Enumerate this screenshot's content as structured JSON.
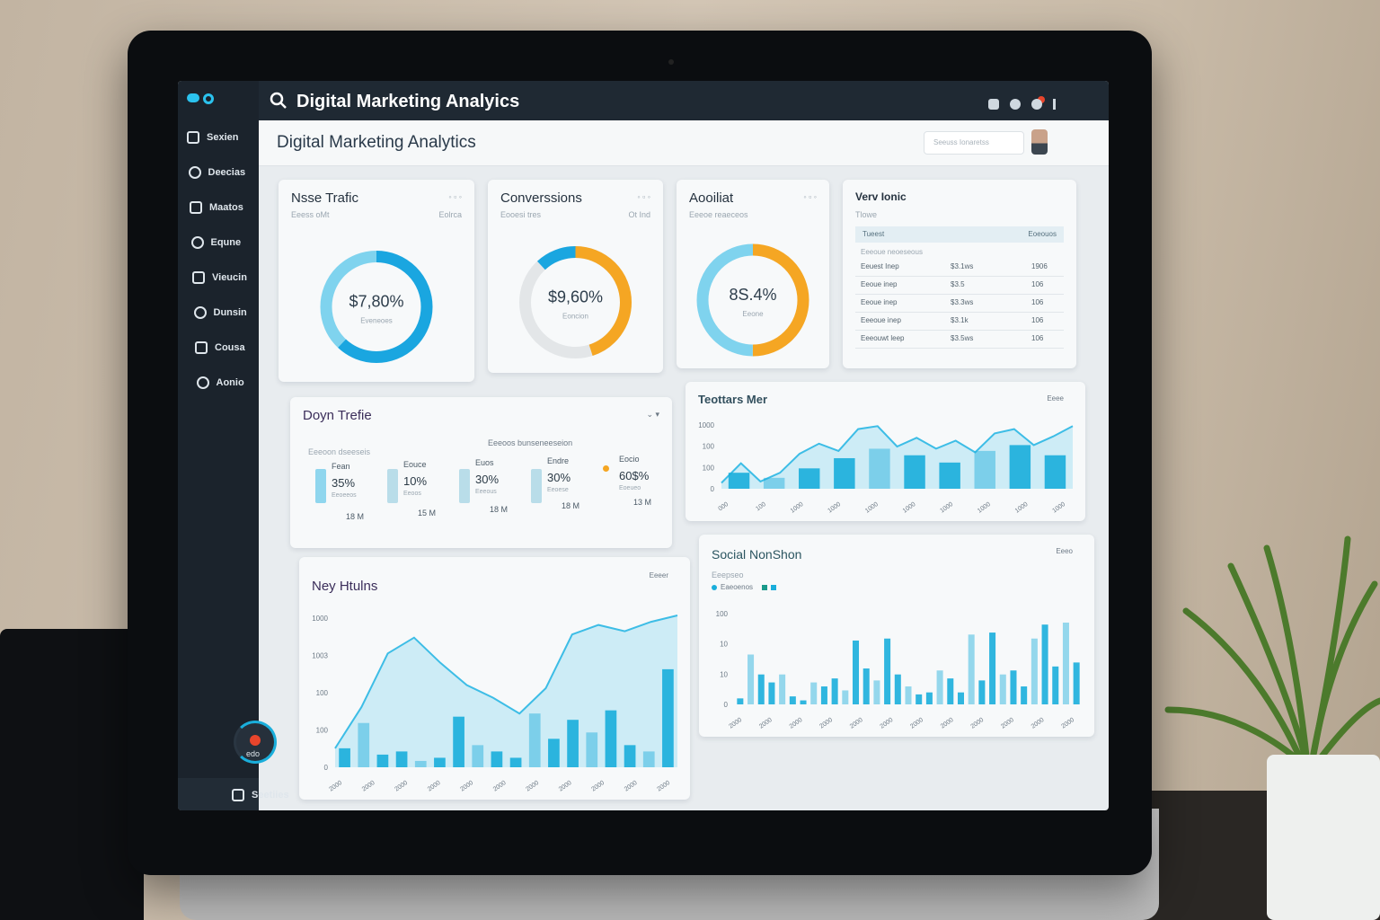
{
  "sidebar": {
    "items": [
      "Sexien",
      "Deecias",
      "Maatos",
      "Equne",
      "Vieucin",
      "Dunsin",
      "Cousa",
      "Aonio"
    ],
    "badge": "edo",
    "footer": "Seetiies"
  },
  "topbar": {
    "title": "Digital Marketing Analyics"
  },
  "header": {
    "title": "Digital Marketing Analytics",
    "search": "Seeuss Ionaretss"
  },
  "donuts": [
    {
      "title": "Nsse Trafic",
      "subtitle": "Eeess oMt",
      "corner": "Eolrca",
      "value": "$7,80%",
      "caption": "Eveneoes"
    },
    {
      "title": "Converssions",
      "subtitle": "Eooesi tres",
      "corner": "Ot Ind",
      "value": "$9,60%",
      "caption": "Eoncion"
    },
    {
      "title": "Aooiliat",
      "subtitle": "Eeeoe reaeceos",
      "corner": "",
      "value": "8S.4%",
      "caption": "Eeone"
    }
  ],
  "table_card": {
    "title": "Verv Ionic",
    "subtitle": "Tlowe",
    "header": [
      "Tueest",
      "Eoeouos"
    ],
    "caption": "Eeeoue neoeseous",
    "rows": [
      [
        "Eeuest Inep",
        "$3.1ws",
        "1906"
      ],
      [
        "Eeoue inep",
        "$3.5",
        "106"
      ],
      [
        "Eeoue inep",
        "$3.3ws",
        "106"
      ],
      [
        "Eeeoue inep",
        "$3.1k",
        "106"
      ],
      [
        "Eeeouwt leep",
        "$3.5ws",
        "106"
      ]
    ]
  },
  "stats_card": {
    "title": "Doyn Trefie",
    "subtitle": "Eeeoon dseeseis",
    "note": "Eeeoos bunseneeseion",
    "items": [
      {
        "label": "Fean",
        "value": "35%",
        "sub": "Eeoeeos",
        "foot": "18 M"
      },
      {
        "label": "Eouce",
        "value": "10%",
        "sub": "Eeoos",
        "foot": "15 M"
      },
      {
        "label": "Euos",
        "value": "30%",
        "sub": "Eeeous",
        "foot": "18 M"
      },
      {
        "label": "Endre",
        "value": "30%",
        "sub": "Eeoese",
        "foot": "18 M"
      },
      {
        "label": "Eocio",
        "value": "60$%",
        "sub": "Eoeueo",
        "foot": "13 M"
      }
    ]
  },
  "traffic_chart": {
    "title": "Teottars Mer",
    "control": "Eeee",
    "y_labels": [
      "1000",
      "100",
      "100",
      "0"
    ],
    "x_labels": [
      "000",
      "100",
      "1000",
      "1000",
      "1000",
      "1000",
      "1000",
      "1000",
      "1000",
      "1000"
    ],
    "ylim": [
      0,
      100
    ],
    "line": [
      8,
      35,
      10,
      22,
      48,
      62,
      52,
      82,
      86,
      58,
      70,
      55,
      66,
      50,
      76,
      82,
      60,
      72,
      86
    ],
    "bars": [
      22,
      15,
      28,
      42,
      55,
      46,
      36,
      52,
      60,
      46
    ],
    "line_color": "#3dbde6",
    "bar_color": "#1aaedb"
  },
  "hours_chart": {
    "title": "Ney Htulns",
    "control": "Eeeer",
    "y_labels": [
      "1000",
      "1003",
      "100",
      "100",
      "0"
    ],
    "x_labels": [
      "2000",
      "2000",
      "2000",
      "2000",
      "2000",
      "2000",
      "2000",
      "2000",
      "2000",
      "2000",
      "2000"
    ],
    "ylim": [
      0,
      100
    ],
    "line": [
      12,
      38,
      72,
      82,
      66,
      52,
      44,
      34,
      50,
      84,
      90,
      86,
      92,
      96
    ],
    "bars": [
      12,
      28,
      8,
      10,
      4,
      6,
      32,
      14,
      10,
      6,
      34,
      18,
      30,
      22,
      36,
      14,
      10,
      62
    ],
    "line_color": "#3dbde6",
    "bar_color": "#1aaedb"
  },
  "social_chart": {
    "title": "Social NonShon",
    "subtitle": "Eeepseo",
    "legend": "Eaeoenos",
    "control": "Eeeo",
    "y_labels": [
      "100",
      "10",
      "10",
      "0"
    ],
    "x_labels": [
      "2000",
      "2000",
      "2000",
      "2000",
      "2000",
      "2000",
      "2000",
      "2000",
      "2000",
      "2000",
      "2000",
      "2000"
    ],
    "ylim": [
      0,
      100
    ],
    "bars": [
      6,
      50,
      30,
      22,
      30,
      8,
      4,
      22,
      18,
      26,
      14,
      64,
      36,
      24,
      66,
      30,
      18,
      10,
      12,
      34,
      26,
      12,
      70,
      24,
      72,
      30,
      34,
      18,
      66,
      80,
      38,
      82,
      42
    ],
    "bar_color": "#1aaedb"
  }
}
